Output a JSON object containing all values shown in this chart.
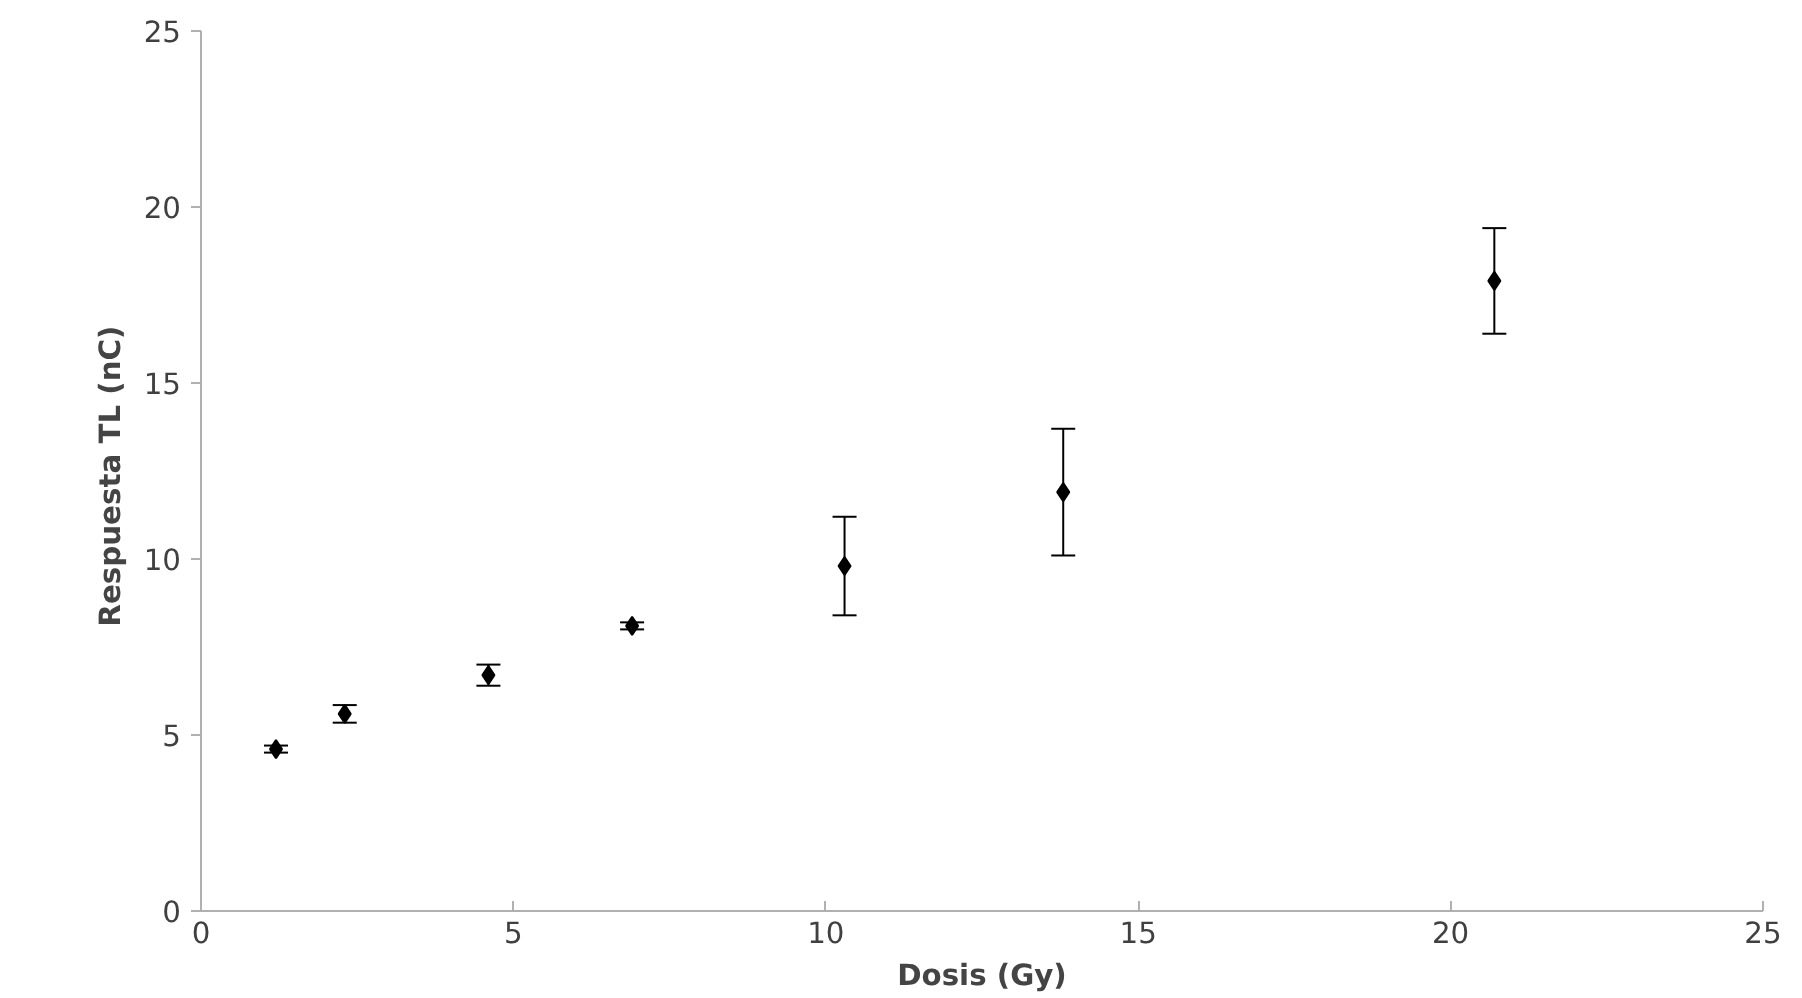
{
  "chart_data": {
    "type": "scatter",
    "xlabel": "Dosis (Gy)",
    "ylabel": "Respuesta TL  (nC)",
    "x": [
      1.2,
      2.3,
      4.6,
      6.9,
      10.3,
      13.8,
      20.7
    ],
    "values": [
      4.6,
      5.6,
      6.7,
      8.1,
      9.8,
      11.9,
      17.9
    ],
    "errors": [
      0.1,
      0.25,
      0.3,
      0.1,
      1.4,
      1.8,
      1.5
    ],
    "color": "#000000",
    "marker": "diamond",
    "xlim": [
      0,
      25
    ],
    "ylim": [
      0,
      25
    ],
    "xticks": [
      0,
      5,
      10,
      15,
      20,
      25
    ],
    "yticks": [
      0,
      5,
      10,
      15,
      20,
      25
    ],
    "grid": false
  }
}
